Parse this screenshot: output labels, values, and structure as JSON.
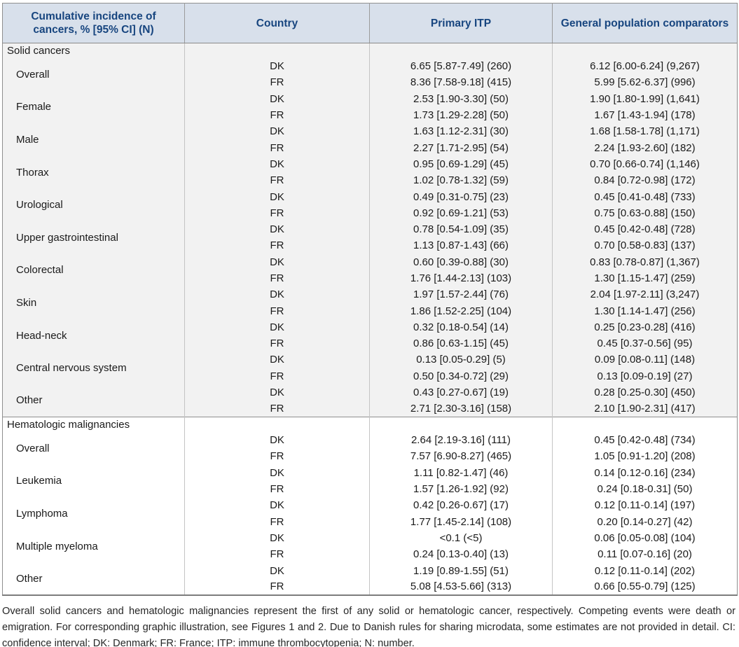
{
  "table": {
    "headers": [
      "Cumulative incidence of cancers, % [95% CI] (N)",
      "Country",
      "Primary ITP",
      "General population comparators"
    ],
    "sections": [
      {
        "name": "Solid cancers",
        "rows": [
          {
            "category": "Overall",
            "entries": [
              {
                "country": "DK",
                "itp": "6.65 [5.87-7.49] (260)",
                "gen": "6.12 [6.00-6.24] (9,267)"
              },
              {
                "country": "FR",
                "itp": "8.36 [7.58-9.18] (415)",
                "gen": "5.99 [5.62-6.37] (996)"
              }
            ]
          },
          {
            "category": "Female",
            "entries": [
              {
                "country": "DK",
                "itp": "2.53 [1.90-3.30] (50)",
                "gen": "1.90 [1.80-1.99] (1,641)"
              },
              {
                "country": "FR",
                "itp": "1.73 [1.29-2.28] (50)",
                "gen": "1.67 [1.43-1.94] (178)"
              }
            ]
          },
          {
            "category": "Male",
            "entries": [
              {
                "country": "DK",
                "itp": "1.63 [1.12-2.31] (30)",
                "gen": "1.68 [1.58-1.78] (1,171)"
              },
              {
                "country": "FR",
                "itp": "2.27 [1.71-2.95] (54)",
                "gen": "2.24 [1.93-2.60] (182)"
              }
            ]
          },
          {
            "category": "Thorax",
            "entries": [
              {
                "country": "DK",
                "itp": "0.95 [0.69-1.29] (45)",
                "gen": "0.70 [0.66-0.74] (1,146)"
              },
              {
                "country": "FR",
                "itp": "1.02 [0.78-1.32] (59)",
                "gen": "0.84 [0.72-0.98] (172)"
              }
            ]
          },
          {
            "category": "Urological",
            "entries": [
              {
                "country": "DK",
                "itp": "0.49 [0.31-0.75] (23)",
                "gen": "0.45 [0.41-0.48] (733)"
              },
              {
                "country": "FR",
                "itp": "0.92 [0.69-1.21] (53)",
                "gen": "0.75 [0.63-0.88] (150)"
              }
            ]
          },
          {
            "category": "Upper gastrointestinal",
            "entries": [
              {
                "country": "DK",
                "itp": "0.78 [0.54-1.09] (35)",
                "gen": "0.45 [0.42-0.48] (728)"
              },
              {
                "country": "FR",
                "itp": "1.13 [0.87-1.43] (66)",
                "gen": "0.70 [0.58-0.83] (137)"
              }
            ]
          },
          {
            "category": "Colorectal",
            "entries": [
              {
                "country": "DK",
                "itp": "0.60 [0.39-0.88] (30)",
                "gen": "0.83 [0.78-0.87] (1,367)"
              },
              {
                "country": "FR",
                "itp": "1.76 [1.44-2.13] (103)",
                "gen": "1.30 [1.15-1.47] (259)"
              }
            ]
          },
          {
            "category": "Skin",
            "entries": [
              {
                "country": "DK",
                "itp": "1.97 [1.57-2.44] (76)",
                "gen": "2.04 [1.97-2.11] (3,247)"
              },
              {
                "country": "FR",
                "itp": "1.86 [1.52-2.25] (104)",
                "gen": "1.30 [1.14-1.47] (256)"
              }
            ]
          },
          {
            "category": "Head-neck",
            "entries": [
              {
                "country": "DK",
                "itp": "0.32 [0.18-0.54] (14)",
                "gen": "0.25 [0.23-0.28] (416)"
              },
              {
                "country": "FR",
                "itp": "0.86 [0.63-1.15] (45)",
                "gen": "0.45 [0.37-0.56] (95)"
              }
            ]
          },
          {
            "category": "Central nervous system",
            "entries": [
              {
                "country": "DK",
                "itp": "0.13 [0.05-0.29] (5)",
                "gen": "0.09 [0.08-0.11] (148)"
              },
              {
                "country": "FR",
                "itp": "0.50 [0.34-0.72] (29)",
                "gen": "0.13 [0.09-0.19] (27)"
              }
            ]
          },
          {
            "category": "Other",
            "entries": [
              {
                "country": "DK",
                "itp": "0.43 [0.27-0.67] (19)",
                "gen": "0.28 [0.25-0.30] (450)"
              },
              {
                "country": "FR",
                "itp": "2.71 [2.30-3.16] (158)",
                "gen": "2.10 [1.90-2.31] (417)"
              }
            ]
          }
        ]
      },
      {
        "name": "Hematologic malignancies",
        "rows": [
          {
            "category": "Overall",
            "entries": [
              {
                "country": "DK",
                "itp": "2.64 [2.19-3.16] (111)",
                "gen": "0.45 [0.42-0.48] (734)"
              },
              {
                "country": "FR",
                "itp": "7.57 [6.90-8.27] (465)",
                "gen": "1.05 [0.91-1.20] (208)"
              }
            ]
          },
          {
            "category": "Leukemia",
            "entries": [
              {
                "country": "DK",
                "itp": "1.11 [0.82-1.47] (46)",
                "gen": "0.14 [0.12-0.16] (234)"
              },
              {
                "country": "FR",
                "itp": "1.57 [1.26-1.92] (92)",
                "gen": "0.24 [0.18-0.31] (50)"
              }
            ]
          },
          {
            "category": "Lymphoma",
            "entries": [
              {
                "country": "DK",
                "itp": "0.42 [0.26-0.67] (17)",
                "gen": "0.12 [0.11-0.14] (197)"
              },
              {
                "country": "FR",
                "itp": "1.77 [1.45-2.14] (108)",
                "gen": "0.20 [0.14-0.27] (42)"
              }
            ]
          },
          {
            "category": "Multiple myeloma",
            "entries": [
              {
                "country": "DK",
                "itp": "<0.1 (<5)",
                "gen": "0.06 [0.05-0.08] (104)"
              },
              {
                "country": "FR",
                "itp": "0.24 [0.13-0.40] (13)",
                "gen": "0.11 [0.07-0.16] (20)"
              }
            ]
          },
          {
            "category": "Other",
            "entries": [
              {
                "country": "DK",
                "itp": "1.19 [0.89-1.55] (51)",
                "gen": "0.12 [0.11-0.14] (202)"
              },
              {
                "country": "FR",
                "itp": "5.08 [4.53-5.66] (313)",
                "gen": "0.66 [0.55-0.79] (125)"
              }
            ]
          }
        ]
      }
    ]
  },
  "footnote": "Overall solid cancers and hematologic malignancies represent the first of any solid or hematologic cancer, respectively. Competing events were death or emigration. For corresponding graphic illustration, see Figures 1 and 2. Due to Danish rules for sharing microdata, some estimates are not provided in detail. CI: confidence interval; DK: Denmark; FR: France; ITP: immune thrombocytopenia; N: number.",
  "colors": {
    "header_bg": "#d8e0eb",
    "header_text": "#17457f",
    "section_shade": "#f2f2f2",
    "section_plain": "#ffffff",
    "border_outer": "#8f8f8f",
    "border_inner": "#c4c4c4",
    "body_text": "#1a1a1a",
    "footnote_text": "#262626"
  }
}
